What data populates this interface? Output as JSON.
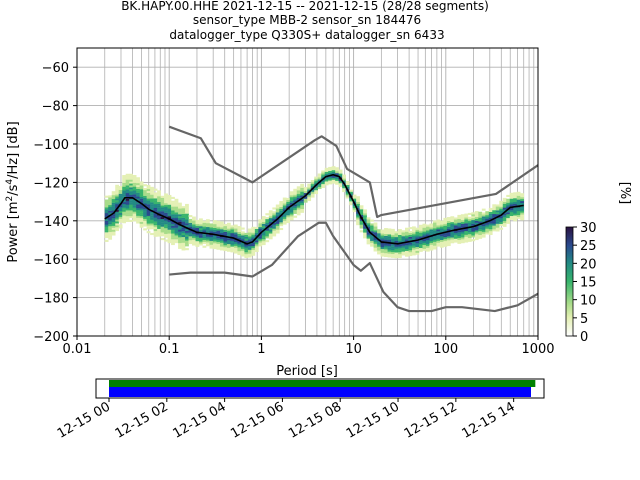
{
  "chart_data": [
    {
      "type": "heatmap",
      "title_lines": [
        "BK.HAPY.00.HHE   2021-12-15 -- 2021-12-15  (28/28 segments)",
        "sensor_type MBB-2 sensor_sn 184476",
        "datalogger_type Q330S+ datalogger_sn 6433"
      ],
      "xlabel": "Period [s]",
      "ylabel_parts": [
        "Power [m",
        "2",
        "/s",
        "4",
        "/Hz] [dB]"
      ],
      "xscale": "log",
      "xlim": [
        0.01,
        1000
      ],
      "ylim": [
        -200,
        -50
      ],
      "x_ticks": [
        0.01,
        0.1,
        1,
        10,
        100,
        1000
      ],
      "x_tick_labels": [
        "0.01",
        "0.1",
        "1",
        "10",
        "100",
        "1000"
      ],
      "y_ticks": [
        -200,
        -180,
        -160,
        -140,
        -120,
        -100,
        -80,
        -60
      ],
      "y_tick_labels": [
        "−200",
        "−180",
        "−160",
        "−140",
        "−120",
        "−100",
        "−80",
        "−60"
      ],
      "grid": true,
      "colorbar": {
        "label": "[%]",
        "range": [
          0,
          30
        ],
        "ticks": [
          0,
          5,
          10,
          15,
          20,
          25,
          30
        ],
        "tick_labels": [
          "0",
          "5",
          "10",
          "15",
          "20",
          "25",
          "30"
        ],
        "colors": [
          "#ffffff",
          "#e4f0b4",
          "#a8dc8a",
          "#38b46c",
          "#228a84",
          "#2a4a8e",
          "#2a1240"
        ]
      },
      "series": [
        {
          "role": "mean",
          "color": "#000000",
          "points": [
            [
              0.02,
              -139
            ],
            [
              0.025,
              -136
            ],
            [
              0.03,
              -131
            ],
            [
              0.033,
              -128
            ],
            [
              0.04,
              -128
            ],
            [
              0.05,
              -131
            ],
            [
              0.06,
              -134
            ],
            [
              0.08,
              -137
            ],
            [
              0.1,
              -139
            ],
            [
              0.13,
              -142
            ],
            [
              0.16,
              -144
            ],
            [
              0.2,
              -146
            ],
            [
              0.3,
              -147
            ],
            [
              0.5,
              -149
            ],
            [
              0.7,
              -152
            ],
            [
              0.8,
              -151
            ],
            [
              1,
              -146
            ],
            [
              1.5,
              -139
            ],
            [
              2,
              -133
            ],
            [
              3,
              -127
            ],
            [
              4,
              -121
            ],
            [
              5,
              -117
            ],
            [
              6,
              -116
            ],
            [
              7,
              -117
            ],
            [
              8,
              -121
            ],
            [
              10,
              -130
            ],
            [
              12,
              -138
            ],
            [
              15,
              -146
            ],
            [
              20,
              -151
            ],
            [
              30,
              -152
            ],
            [
              50,
              -150
            ],
            [
              80,
              -147
            ],
            [
              120,
              -145
            ],
            [
              200,
              -143
            ],
            [
              300,
              -140
            ],
            [
              400,
              -137
            ],
            [
              500,
              -133
            ],
            [
              700,
              -132
            ]
          ]
        },
        {
          "role": "noise-model-high",
          "color": "#666666",
          "points": [
            [
              0.1,
              -91
            ],
            [
              0.22,
              -97
            ],
            [
              0.32,
              -110
            ],
            [
              0.8,
              -120
            ],
            [
              3.8,
              -98
            ],
            [
              4.5,
              -96
            ],
            [
              6.5,
              -101
            ],
            [
              8.5,
              -113
            ],
            [
              15,
              -120
            ],
            [
              18,
              -138
            ],
            [
              20,
              -137
            ],
            [
              350,
              -126
            ],
            [
              1000,
              -111
            ]
          ]
        },
        {
          "role": "noise-model-low",
          "color": "#666666",
          "points": [
            [
              0.1,
              -168
            ],
            [
              0.17,
              -167
            ],
            [
              0.4,
              -167
            ],
            [
              0.8,
              -169
            ],
            [
              1.3,
              -163
            ],
            [
              2.5,
              -148
            ],
            [
              4.2,
              -141
            ],
            [
              5,
              -141
            ],
            [
              6,
              -148
            ],
            [
              10,
              -163
            ],
            [
              12,
              -166
            ],
            [
              15,
              -162
            ],
            [
              21,
              -177
            ],
            [
              30,
              -185
            ],
            [
              40,
              -187
            ],
            [
              70,
              -187
            ],
            [
              100,
              -185
            ],
            [
              150,
              -185
            ],
            [
              340,
              -187
            ],
            [
              600,
              -184
            ],
            [
              1000,
              -178
            ]
          ]
        }
      ],
      "band": {
        "description_free": "",
        "period_start": 0.02,
        "period_end": 700
      }
    },
    {
      "type": "bar",
      "x_tick_labels": [
        "12-15 00",
        "12-15 02",
        "12-15 04",
        "12-15 06",
        "12-15 08",
        "12-15 10",
        "12-15 12",
        "12-15 14"
      ],
      "x_ticks_hours": [
        0,
        2,
        4,
        6,
        8,
        10,
        12,
        14
      ],
      "xlim_hours": [
        -0.45,
        15.05
      ],
      "series": [
        {
          "color": "#008000",
          "start_hour": 0.0,
          "end_hour": 14.75
        },
        {
          "color": "#0000ff",
          "start_hour": 0.0,
          "end_hour": 14.6
        }
      ]
    }
  ]
}
